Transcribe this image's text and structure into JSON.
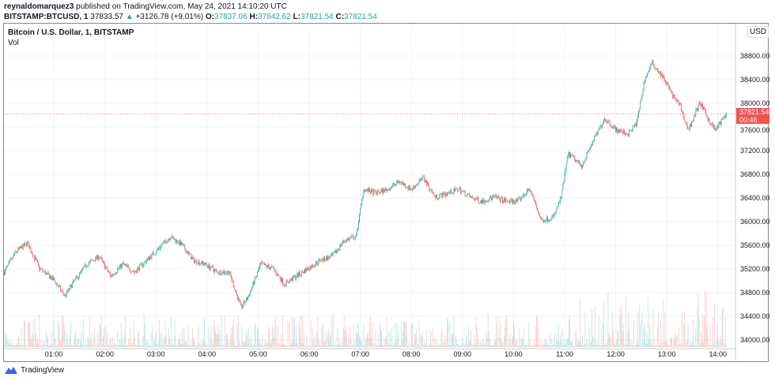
{
  "header": {
    "publisher": "reynaldomarquez3",
    "published_text": "published on TradingView.com, May 24, 2021 14:10:20 UTC",
    "symbol": "BITSTAMP:BTCUSD, 1",
    "last": "37833.57",
    "change": "+3126.78 (+9.01%)",
    "o_label": "O:",
    "o": "37837.06",
    "h_label": "H:",
    "h": "37842.62",
    "l_label": "L:",
    "l": "37821.54",
    "c_label": "C:",
    "c": "37821.54"
  },
  "legend": {
    "series": "Bitcoin / U.S. Dollar, 1, BITSTAMP",
    "vol": "Vol"
  },
  "currency": "USD",
  "price_tag": {
    "value": "37821.54",
    "countdown": "00:46",
    "color": "#ef5350"
  },
  "footer": {
    "brand": "TradingView"
  },
  "colors": {
    "up": "#26a69a",
    "down": "#ef5350"
  },
  "chart_data": {
    "type": "candlestick",
    "ylim": [
      34000,
      38800
    ],
    "yticks": [
      "38800.00",
      "38400.00",
      "38000.00",
      "37600.00",
      "37200.00",
      "36800.00",
      "36400.00",
      "36000.00",
      "35600.00",
      "35200.00",
      "34800.00",
      "34400.00",
      "34000.00"
    ],
    "xticks": [
      "01:00",
      "02:00",
      "03:00",
      "04:00",
      "05:00",
      "06:00",
      "07:00",
      "08:00",
      "09:00",
      "10:00",
      "11:00",
      "12:00",
      "13:00",
      "14:00"
    ],
    "price_path": [
      [
        "00:02",
        35147
      ],
      [
        "00:15",
        35480
      ],
      [
        "00:29",
        35640
      ],
      [
        "00:43",
        35213
      ],
      [
        "01:00",
        35013
      ],
      [
        "01:13",
        34747
      ],
      [
        "01:25",
        35013
      ],
      [
        "01:39",
        35280
      ],
      [
        "01:53",
        35413
      ],
      [
        "02:07",
        35080
      ],
      [
        "02:21",
        35280
      ],
      [
        "02:35",
        35147
      ],
      [
        "02:49",
        35347
      ],
      [
        "03:03",
        35547
      ],
      [
        "03:17",
        35747
      ],
      [
        "03:30",
        35613
      ],
      [
        "03:44",
        35347
      ],
      [
        "03:58",
        35280
      ],
      [
        "04:12",
        35147
      ],
      [
        "04:26",
        35147
      ],
      [
        "04:40",
        34547
      ],
      [
        "04:49",
        34747
      ],
      [
        "05:03",
        35280
      ],
      [
        "05:17",
        35213
      ],
      [
        "05:31",
        34947
      ],
      [
        "05:45",
        35080
      ],
      [
        "05:59",
        35213
      ],
      [
        "06:13",
        35347
      ],
      [
        "06:27",
        35413
      ],
      [
        "06:41",
        35680
      ],
      [
        "06:55",
        35747
      ],
      [
        "07:04",
        36547
      ],
      [
        "07:18",
        36480
      ],
      [
        "07:32",
        36547
      ],
      [
        "07:46",
        36680
      ],
      [
        "08:00",
        36547
      ],
      [
        "08:14",
        36747
      ],
      [
        "08:28",
        36413
      ],
      [
        "08:42",
        36480
      ],
      [
        "08:56",
        36547
      ],
      [
        "09:09",
        36413
      ],
      [
        "09:23",
        36347
      ],
      [
        "09:37",
        36413
      ],
      [
        "09:51",
        36347
      ],
      [
        "10:05",
        36347
      ],
      [
        "10:19",
        36547
      ],
      [
        "10:33",
        36013
      ],
      [
        "10:47",
        36080
      ],
      [
        "10:56",
        36413
      ],
      [
        "11:04",
        37147
      ],
      [
        "11:20",
        36947
      ],
      [
        "11:33",
        37347
      ],
      [
        "11:47",
        37747
      ],
      [
        "12:01",
        37547
      ],
      [
        "12:15",
        37480
      ],
      [
        "12:25",
        37680
      ],
      [
        "12:34",
        38413
      ],
      [
        "12:43",
        38680
      ],
      [
        "12:57",
        38413
      ],
      [
        "13:06",
        38147
      ],
      [
        "13:16",
        37947
      ],
      [
        "13:25",
        37547
      ],
      [
        "13:39",
        38013
      ],
      [
        "13:48",
        37747
      ],
      [
        "13:57",
        37547
      ],
      [
        "14:10",
        37821
      ]
    ]
  }
}
